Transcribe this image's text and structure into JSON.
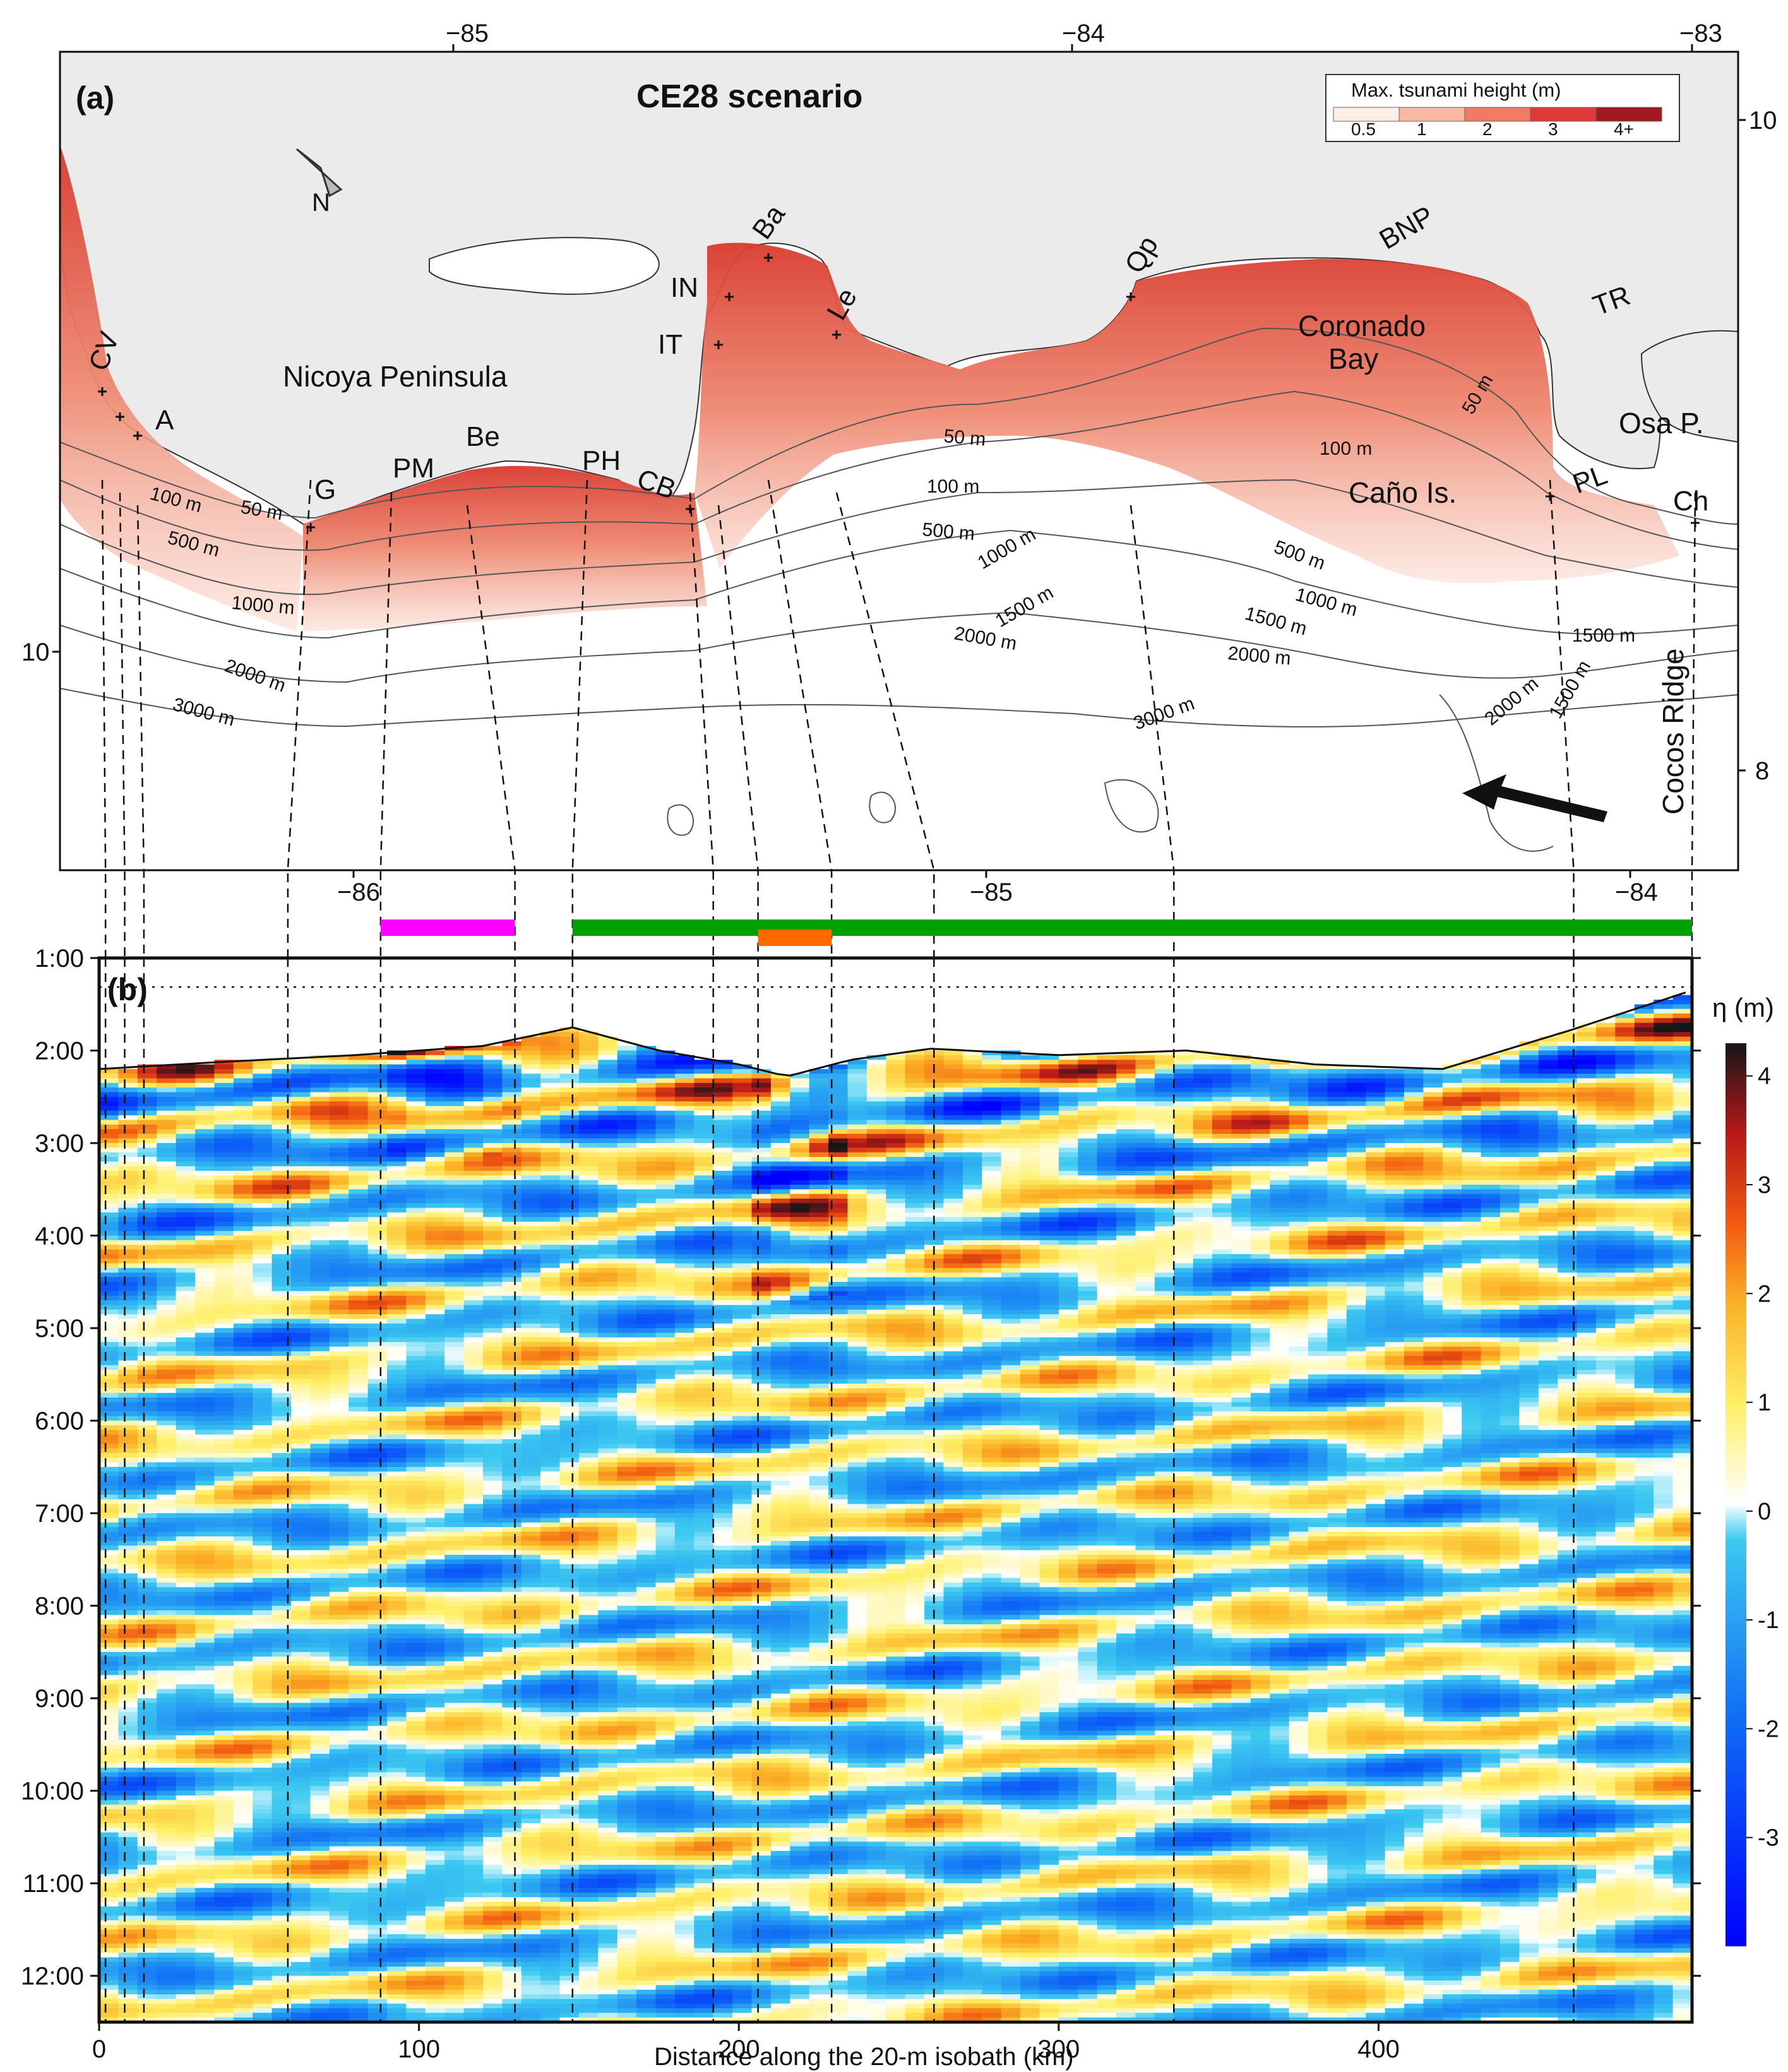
{
  "panel_a": {
    "label": "(a)",
    "title": "CE28 scenario",
    "top_lon_ticks": [
      "−85",
      "−84",
      "−83"
    ],
    "bottom_lon_ticks": [
      "−86",
      "−85",
      "−84"
    ],
    "left_lat_tick": "10",
    "right_lat_ticks": [
      "10",
      "8"
    ],
    "north_label": "N",
    "region_labels": {
      "nicoya": "Nicoya Peninsula",
      "coronado_1": "Coronado",
      "coronado_2": "Bay",
      "osa": "Osa P.",
      "cano": "Caño Is.",
      "cocos": "Cocos Ridge"
    },
    "site_labels": [
      "CV",
      "A",
      "G",
      "PM",
      "Be",
      "PH",
      "CB",
      "IT",
      "IN",
      "Ba",
      "Le",
      "Qp",
      "BNP",
      "TR",
      "PL",
      "Ch"
    ],
    "contour_labels": [
      "50 m",
      "100 m",
      "500 m",
      "1000 m",
      "2000 m",
      "3000 m",
      "50 m",
      "100 m",
      "500 m",
      "1000 m",
      "1500 m",
      "2000 m",
      "3000 m",
      "50 m",
      "100 m",
      "500 m",
      "1000 m",
      "1500 m",
      "2000 m",
      "1500 m",
      "2000 m",
      "1500 m"
    ],
    "legend": {
      "title": "Max. tsunami height (m)",
      "labels": [
        "0.5",
        "1",
        "2",
        "3",
        "4+"
      ],
      "colors": [
        "#fdeee8",
        "#f8b9a3",
        "#f07a63",
        "#e0393a",
        "#a01a1f"
      ]
    }
  },
  "bars": [
    {
      "color": "#ff00ff",
      "from_km": 88,
      "to_km": 130
    },
    {
      "color": "#00a000",
      "from_km": 148,
      "to_km": 498
    },
    {
      "color": "#ff6a00",
      "from_km": 206,
      "to_km": 229
    }
  ],
  "chart_data": {
    "type": "heatmap",
    "label": "(b)",
    "xlabel": "Distance along the 20-m isobath (km)",
    "x_ticks": [
      "0",
      "100",
      "200",
      "300",
      "400"
    ],
    "xlim": [
      0,
      498
    ],
    "y_ticks": [
      "1:00",
      "2:00",
      "3:00",
      "4:00",
      "5:00",
      "6:00",
      "7:00",
      "8:00",
      "9:00",
      "10:00",
      "11:00",
      "12:00"
    ],
    "ylim_hours": [
      1,
      12.5
    ],
    "colorbar_label": "η (m)",
    "colorbar_ticks": [
      "4",
      "3",
      "2",
      "1",
      "0",
      "-1",
      "-2",
      "-3"
    ],
    "colorbar_range": [
      -4,
      4.3
    ],
    "arrival_front_km": [
      0,
      40,
      80,
      120,
      148,
      175,
      200,
      215,
      235,
      260,
      300,
      340,
      380,
      420,
      460,
      498
    ],
    "arrival_front_hours": [
      2.2,
      2.12,
      2.05,
      1.95,
      1.75,
      2.0,
      2.15,
      2.28,
      2.1,
      1.98,
      2.05,
      2.0,
      2.15,
      2.2,
      1.78,
      1.35
    ],
    "dashed_lines_km": [
      2,
      8,
      14,
      59,
      88,
      130,
      148,
      192,
      206,
      229,
      261,
      336,
      461,
      498
    ]
  }
}
